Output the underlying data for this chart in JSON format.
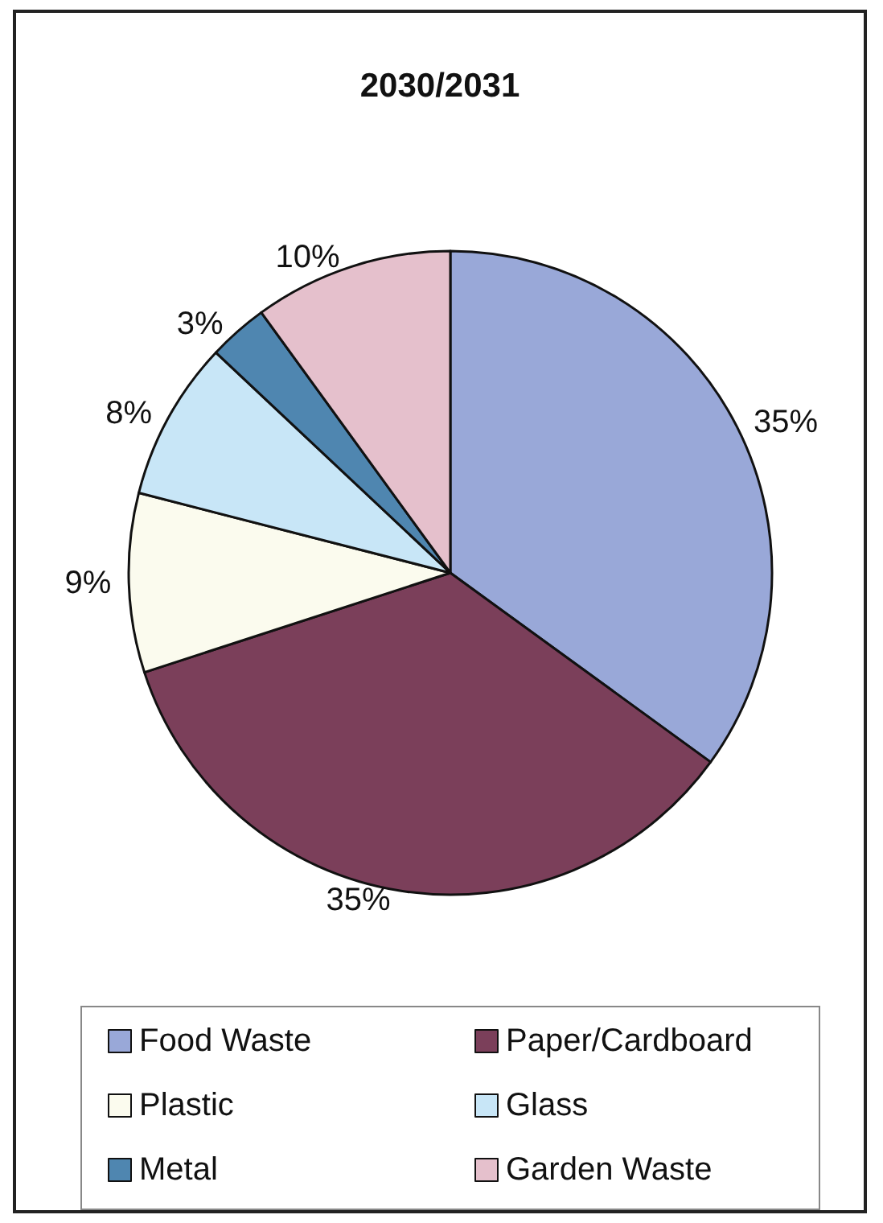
{
  "chart_data": {
    "type": "pie",
    "title": "2030/2031",
    "categories": [
      "Food Waste",
      "Paper/Cardboard",
      "Plastic",
      "Glass",
      "Metal",
      "Garden Waste"
    ],
    "values": [
      35,
      35,
      9,
      8,
      3,
      10
    ],
    "value_labels": [
      "35%",
      "35%",
      "9%",
      "8%",
      "3%",
      "10%"
    ],
    "colors": [
      "#99a8d8",
      "#7b3f5a",
      "#fbfbee",
      "#c8e6f7",
      "#4f86b0",
      "#e5c0cc"
    ],
    "legend": "bottom"
  }
}
